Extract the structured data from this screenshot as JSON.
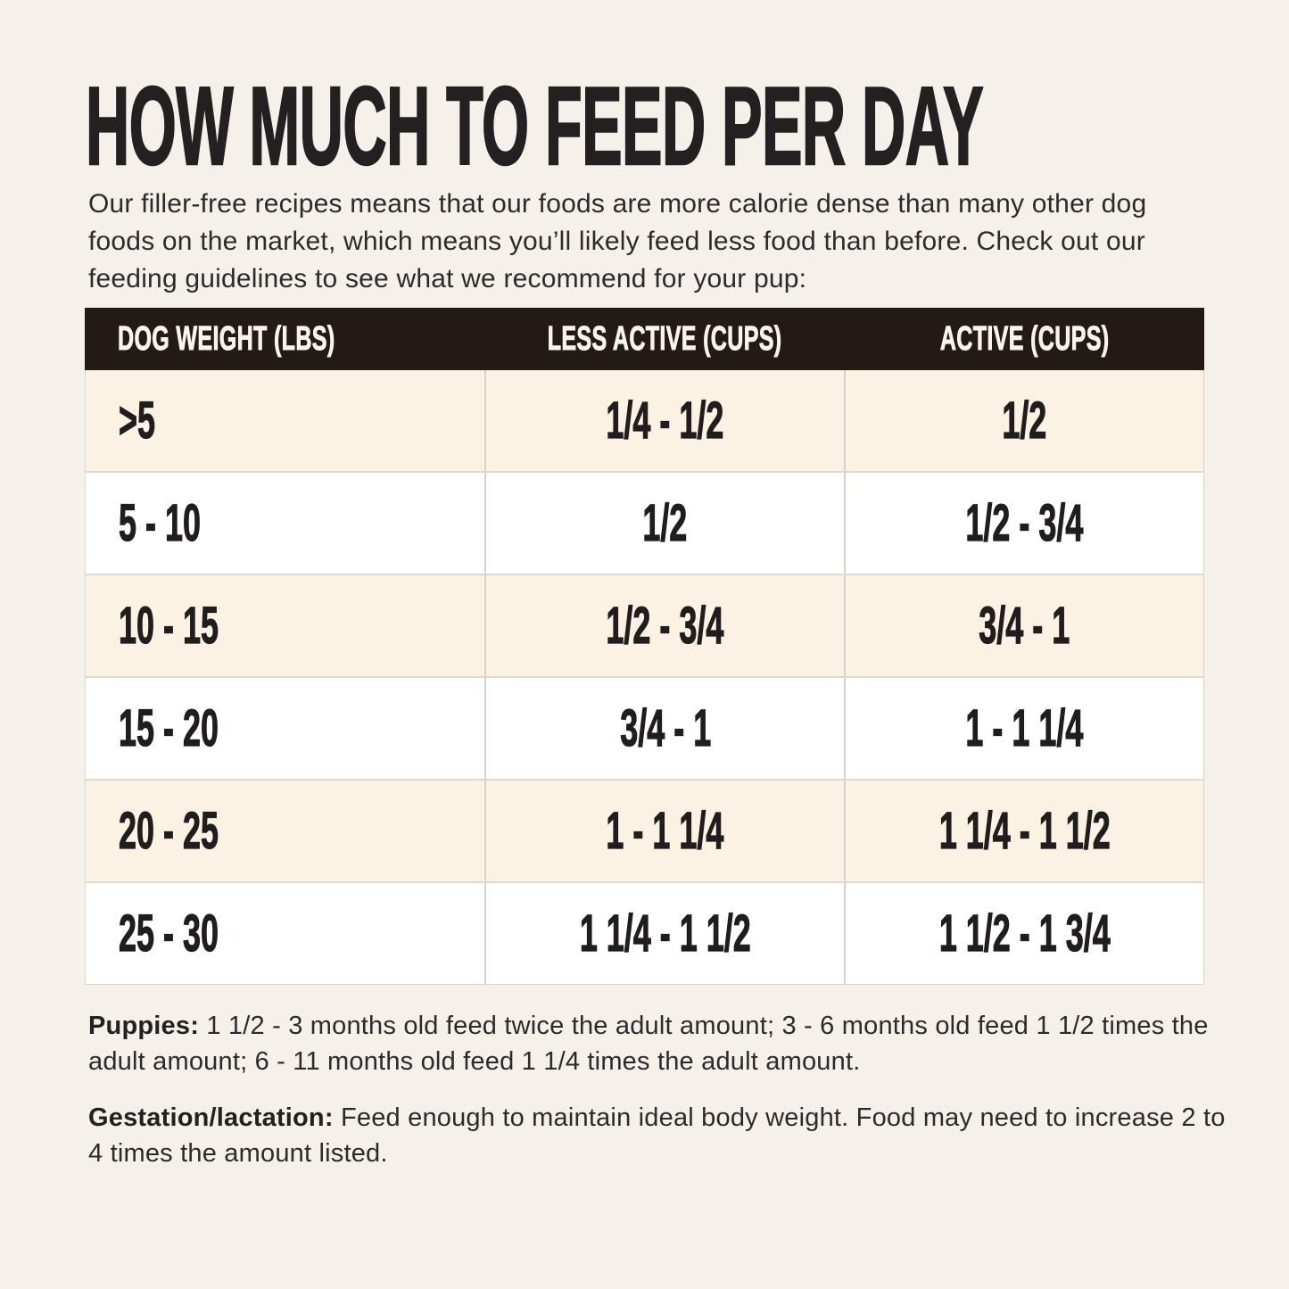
{
  "page": {
    "title": "HOW MUCH TO FEED PER DAY",
    "intro": "Our filler-free recipes means that our foods are more calorie dense than many other dog foods on the market, which means you’ll likely feed less food than before. Check out our feeding guidelines to see what we recommend for your pup:"
  },
  "table": {
    "columns": [
      "DOG WEIGHT (LBS)",
      "LESS ACTIVE (CUPS)",
      "ACTIVE (CUPS)"
    ],
    "rows": [
      {
        "weight": ">5",
        "less_active": "1/4 - 1/2",
        "active": "1/2"
      },
      {
        "weight": "5 - 10",
        "less_active": "1/2",
        "active": "1/2 - 3/4"
      },
      {
        "weight": "10 - 15",
        "less_active": "1/2 - 3/4",
        "active": "3/4 - 1"
      },
      {
        "weight": "15 - 20",
        "less_active": "3/4 - 1",
        "active": "1 - 1 1/4"
      },
      {
        "weight": "20 - 25",
        "less_active": "1 - 1 1/4",
        "active": "1 1/4 - 1 1/2"
      },
      {
        "weight": "25 - 30",
        "less_active": "1 1/4 - 1 1/2",
        "active": "1 1/2 - 1 3/4"
      }
    ]
  },
  "notes": [
    {
      "label": "Puppies:",
      "text": " 1 1/2 - 3 months old feed twice the adult amount; 3 - 6 months old feed 1 1/2 times the adult amount; 6 - 11 months old feed 1 1/4 times the adult amount."
    },
    {
      "label": "Gestation/lactation:",
      "text": " Feed enough to maintain ideal body weight. Food may need to increase 2 to 4 times the amount listed."
    }
  ],
  "colors": {
    "page_background": "#f5f0e9",
    "header_background": "#231a14",
    "header_text": "#f8f4ed",
    "row_cream": "#fcf2e4",
    "row_white": "#ffffff",
    "text_dark": "#242021",
    "divider": "#d7d2ca"
  }
}
